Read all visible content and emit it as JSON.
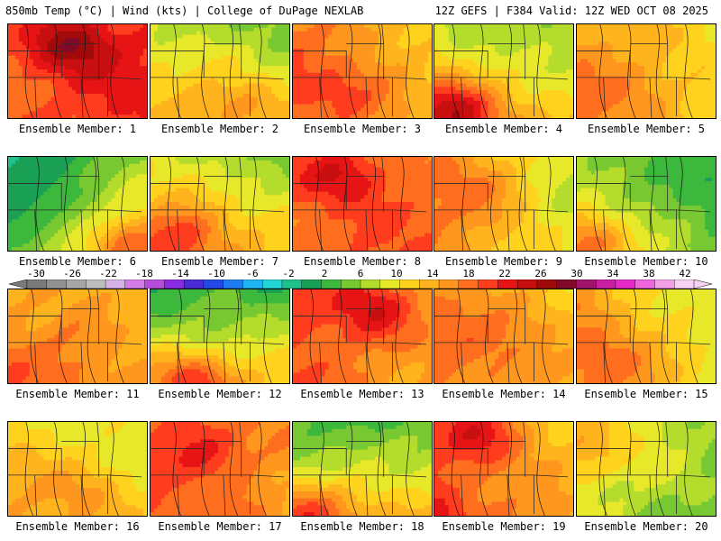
{
  "header": {
    "left": "850mb Temp (°C) | Wind (kts) | College of DuPage NEXLAB",
    "right": "12Z GEFS | F384 Valid: 12Z WED OCT 08 2025"
  },
  "colorbar": {
    "labels": [
      "-30",
      "-26",
      "-22",
      "-18",
      "-14",
      "-10",
      "-6",
      "-2",
      "2",
      "6",
      "10",
      "14",
      "18",
      "22",
      "26",
      "30",
      "34",
      "38",
      "42"
    ],
    "colors": [
      "#7a7a7a",
      "#909090",
      "#a6a6a6",
      "#bdbdbd",
      "#d6b3e6",
      "#d27ee6",
      "#b64dd8",
      "#8a2be2",
      "#4b2ad6",
      "#2348e6",
      "#1e7cf0",
      "#20b4f0",
      "#22d6d6",
      "#20c08c",
      "#1aa055",
      "#3cb83c",
      "#78c832",
      "#b4dc2d",
      "#e8e82a",
      "#ffd21e",
      "#ffb41e",
      "#ff961e",
      "#ff6e1e",
      "#ff3c1e",
      "#e61414",
      "#c80f0f",
      "#a00a0a",
      "#800a28",
      "#a0146e",
      "#c81ea0",
      "#e628c8",
      "#f064dc",
      "#f4a0e8",
      "#f8d2f2"
    ]
  },
  "panels": [
    {
      "caption": "Ensemble Member: 1",
      "mean": 22,
      "hot": [
        0.45,
        0.2
      ],
      "hotAmp": 8,
      "grad": [
        0.3,
        0.1
      ]
    },
    {
      "caption": "Ensemble Member: 2",
      "mean": 11,
      "hot": [
        0.6,
        0.85
      ],
      "hotAmp": 4,
      "grad": [
        -0.2,
        0.6
      ]
    },
    {
      "caption": "Ensemble Member: 3",
      "mean": 17,
      "hot": [
        0.4,
        0.7
      ],
      "hotAmp": 4,
      "grad": [
        -0.6,
        0.0
      ]
    },
    {
      "caption": "Ensemble Member: 4",
      "mean": 12,
      "hot": [
        0.1,
        0.9
      ],
      "hotAmp": 10,
      "grad": [
        -0.4,
        0.8
      ]
    },
    {
      "caption": "Ensemble Member: 5",
      "mean": 15,
      "hot": [
        0.4,
        0.6
      ],
      "hotAmp": 3,
      "grad": [
        -0.6,
        0.2
      ]
    },
    {
      "caption": "Ensemble Member: 6",
      "mean": 6,
      "hot": [
        0.85,
        0.9
      ],
      "hotAmp": 10,
      "grad": [
        0.8,
        0.6
      ]
    },
    {
      "caption": "Ensemble Member: 7",
      "mean": 12,
      "hot": [
        0.2,
        0.8
      ],
      "hotAmp": 8,
      "grad": [
        -0.4,
        0.8
      ]
    },
    {
      "caption": "Ensemble Member: 8",
      "mean": 20,
      "hot": [
        0.35,
        0.15
      ],
      "hotAmp": 6,
      "grad": [
        0.0,
        0.2
      ]
    },
    {
      "caption": "Ensemble Member: 9",
      "mean": 14,
      "hot": [
        0.3,
        0.3
      ],
      "hotAmp": 3,
      "grad": [
        -0.9,
        0.0
      ]
    },
    {
      "caption": "Ensemble Member: 10",
      "mean": 7,
      "hot": [
        0.1,
        0.9
      ],
      "hotAmp": 8,
      "grad": [
        -0.6,
        0.4
      ]
    },
    {
      "caption": "Ensemble Member: 11",
      "mean": 17,
      "hot": [
        0.5,
        0.5
      ],
      "hotAmp": 2,
      "grad": [
        -0.3,
        0.3
      ]
    },
    {
      "caption": "Ensemble Member: 12",
      "mean": 9,
      "hot": [
        0.3,
        0.9
      ],
      "hotAmp": 8,
      "grad": [
        0.0,
        1.2
      ]
    },
    {
      "caption": "Ensemble Member: 13",
      "mean": 19,
      "hot": [
        0.55,
        0.2
      ],
      "hotAmp": 6,
      "grad": [
        -0.5,
        0.0
      ]
    },
    {
      "caption": "Ensemble Member: 14",
      "mean": 17,
      "hot": [
        0.5,
        0.5
      ],
      "hotAmp": 2,
      "grad": [
        -0.5,
        0.2
      ]
    },
    {
      "caption": "Ensemble Member: 15",
      "mean": 14,
      "hot": [
        0.2,
        0.8
      ],
      "hotAmp": 4,
      "grad": [
        -0.7,
        0.2
      ]
    },
    {
      "caption": "Ensemble Member: 16",
      "mean": 13,
      "hot": [
        0.6,
        0.7
      ],
      "hotAmp": 3,
      "grad": [
        -0.4,
        0.3
      ]
    },
    {
      "caption": "Ensemble Member: 17",
      "mean": 19,
      "hot": [
        0.4,
        0.3
      ],
      "hotAmp": 5,
      "grad": [
        -0.4,
        0.0
      ]
    },
    {
      "caption": "Ensemble Member: 18",
      "mean": 10,
      "hot": [
        0.1,
        0.9
      ],
      "hotAmp": 6,
      "grad": [
        0.0,
        1.2
      ]
    },
    {
      "caption": "Ensemble Member: 19",
      "mean": 18,
      "hot": [
        0.3,
        0.1
      ],
      "hotAmp": 6,
      "grad": [
        -0.7,
        0.4
      ]
    },
    {
      "caption": "Ensemble Member: 20",
      "mean": 9,
      "hot": [
        0.1,
        0.3
      ],
      "hotAmp": 4,
      "grad": [
        -0.5,
        -0.2
      ]
    }
  ]
}
